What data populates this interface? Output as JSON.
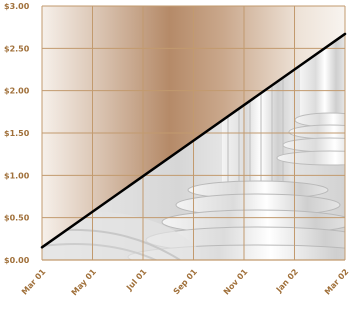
{
  "chart_data": {
    "type": "line",
    "title": "",
    "xlabel": "",
    "ylabel": "",
    "x": [
      "Mar 01",
      "May 01",
      "Jul 01",
      "Sep 01",
      "Nov 01",
      "Jan 02",
      "Mar 02"
    ],
    "ytick_labels": [
      "$0.00",
      "$0.50",
      "$1.00",
      "$1.50",
      "$2.00",
      "$2.50",
      "$3.00"
    ],
    "ytick_values": [
      0,
      0.5,
      1.0,
      1.5,
      2.0,
      2.5,
      3.0
    ],
    "ylim": [
      0,
      3.0
    ],
    "grid": true,
    "legend": "none",
    "series": [
      {
        "values": [
          0.15,
          0.57,
          0.99,
          1.41,
          1.83,
          2.25,
          2.67
        ]
      }
    ],
    "colors": {
      "line": "#000000",
      "grid": "#c29a6e",
      "tick_text": "#a0703a",
      "background_gradient_edge": "#f3ece6",
      "background_gradient_center": "#b98c6c",
      "stone": "#d9d9d9"
    },
    "background_image": "greek-column-photo"
  }
}
